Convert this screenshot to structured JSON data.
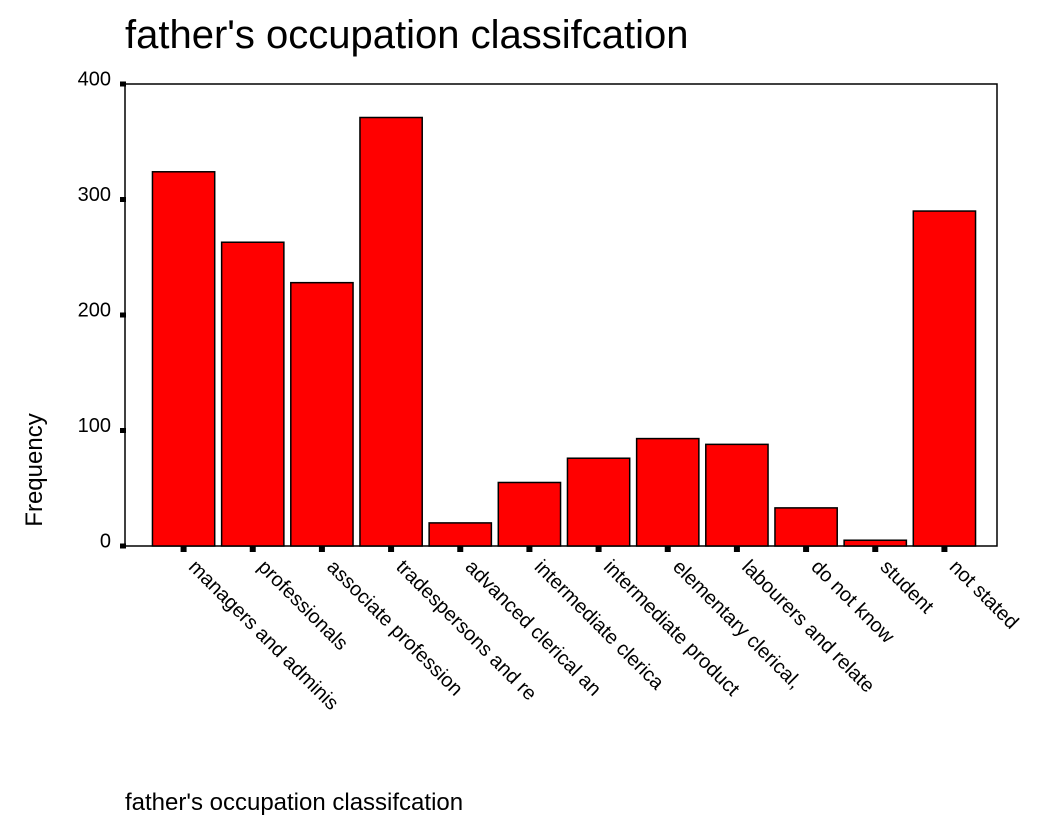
{
  "chart_data": {
    "type": "bar",
    "title": "father's occupation classifcation",
    "x_label": "father's occupation classifcation",
    "y_label": "Frequency",
    "categories": [
      "managers and adminis",
      "professionals",
      "associate profession",
      "tradespersons and re",
      "advanced clerical an",
      "intermediate clerica",
      "intermediate product",
      "elementary clerical,",
      "labourers and relate",
      "do not know",
      "student",
      "not stated"
    ],
    "values": [
      324,
      263,
      228,
      371,
      20,
      55,
      76,
      93,
      88,
      33,
      5,
      290
    ],
    "color": "#ff0000",
    "ylim": [
      0,
      400
    ],
    "yticks": [
      0,
      100,
      200,
      300,
      400
    ],
    "grid": false
  }
}
